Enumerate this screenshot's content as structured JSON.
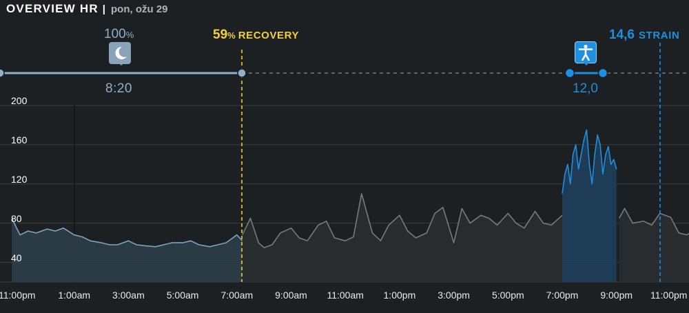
{
  "header": {
    "title": "OVERVIEW HR",
    "separator": "|",
    "date": "pon, ožu 29"
  },
  "sleep": {
    "percent": "100",
    "percent_unit": "%",
    "duration": "8:20",
    "icon": "moon-icon"
  },
  "recovery": {
    "value": "59",
    "unit": "%",
    "label": "RECOVERY",
    "color": "#f2d13a"
  },
  "strain": {
    "value": "14,6",
    "label": "STRAIN",
    "color": "#1f8fe0"
  },
  "activity": {
    "value": "12,0",
    "icon": "person-activity-icon",
    "color": "#1f8fe0"
  },
  "chart_data": {
    "type": "line",
    "title": "OVERVIEW HR",
    "ylim": [
      20,
      200
    ],
    "y_ticks": [
      "200",
      "160",
      "120",
      "80",
      "40"
    ],
    "x_ticks": [
      "11:00pm",
      "1:00am",
      "3:00am",
      "5:00am",
      "7:00am",
      "9:00am",
      "11:00am",
      "1:00pm",
      "3:00pm",
      "5:00pm",
      "7:00pm",
      "9:00pm",
      "11:00pm"
    ],
    "grid": true,
    "series": [
      {
        "color": "#7ea4c0",
        "x": [
          -0.3,
          0,
          0.3,
          0.6,
          1,
          1.3,
          1.6,
          2,
          2.3,
          2.6,
          3,
          3.3,
          3.6,
          4,
          4.3,
          4.6,
          5,
          5.3,
          5.6,
          6,
          6.3,
          6.6,
          7,
          7.3,
          7.6,
          8,
          8.2
        ],
        "y": [
          85,
          68,
          72,
          70,
          74,
          72,
          75,
          68,
          66,
          62,
          60,
          58,
          58,
          62,
          58,
          57,
          56,
          58,
          60,
          60,
          62,
          58,
          56,
          58,
          60,
          68,
          62
        ]
      },
      {
        "color": "#7a7a7a",
        "x": [
          8.2,
          8.5,
          8.8,
          9,
          9.3,
          9.6,
          10,
          10.3,
          10.6,
          11,
          11.3,
          11.6,
          12,
          12.3,
          12.6,
          13,
          13.3,
          13.6,
          14,
          14.3,
          14.6,
          15,
          15.3,
          15.6,
          16,
          16.3,
          16.6,
          17,
          17.3,
          17.6,
          18,
          18.3,
          18.6,
          19,
          19.3,
          19.6,
          20
        ],
        "y": [
          68,
          85,
          60,
          55,
          58,
          70,
          75,
          65,
          62,
          78,
          82,
          65,
          62,
          66,
          110,
          70,
          62,
          78,
          88,
          72,
          65,
          70,
          90,
          96,
          60,
          95,
          80,
          88,
          85,
          78,
          90,
          80,
          75,
          92,
          80,
          78,
          88
        ]
      },
      {
        "color": "#1f8fe0",
        "x": [
          20,
          20.1,
          20.2,
          20.3,
          20.4,
          20.5,
          20.6,
          20.7,
          20.8,
          20.9,
          21,
          21.1,
          21.2,
          21.3,
          21.4,
          21.5,
          21.6,
          21.7,
          21.8,
          21.9,
          22
        ],
        "y": [
          110,
          130,
          140,
          120,
          150,
          160,
          135,
          150,
          165,
          175,
          140,
          120,
          150,
          170,
          160,
          130,
          150,
          158,
          140,
          145,
          135
        ]
      },
      {
        "color": "#7a7a7a",
        "x": [
          22.1,
          22.3,
          22.6,
          23,
          23.3,
          23.6,
          24,
          24.3,
          24.6,
          25,
          25.3,
          25.6,
          26
        ],
        "y": [
          85,
          95,
          80,
          82,
          78,
          90,
          86,
          70,
          68,
          75,
          80,
          92,
          80
        ]
      }
    ],
    "markers": [
      {
        "label": "59% RECOVERY",
        "x": "7:00am"
      },
      {
        "label": "14,6 STRAIN",
        "x": "11:00pm"
      }
    ]
  }
}
